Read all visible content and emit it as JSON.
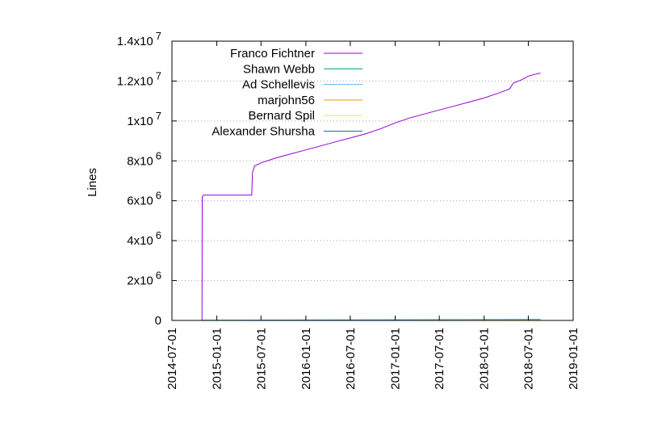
{
  "chart_data": {
    "type": "line",
    "title": "",
    "xlabel": "",
    "ylabel": "Lines",
    "ylim": [
      0,
      14000000
    ],
    "xlim": [
      "2014-07-01",
      "2019-01-01"
    ],
    "grid": true,
    "legend_position": "top-left",
    "y_ticks": [
      {
        "value": 0,
        "mantissa": "0",
        "exp": ""
      },
      {
        "value": 2000000,
        "mantissa": "2x10",
        "exp": "6"
      },
      {
        "value": 4000000,
        "mantissa": "4x10",
        "exp": "6"
      },
      {
        "value": 6000000,
        "mantissa": "6x10",
        "exp": "6"
      },
      {
        "value": 8000000,
        "mantissa": "8x10",
        "exp": "6"
      },
      {
        "value": 10000000,
        "mantissa": "1x10",
        "exp": "7"
      },
      {
        "value": 12000000,
        "mantissa": "1.2x10",
        "exp": "7"
      },
      {
        "value": 14000000,
        "mantissa": "1.4x10",
        "exp": "7"
      }
    ],
    "x_ticks": [
      "2014-07-01",
      "2015-01-01",
      "2015-07-01",
      "2016-01-01",
      "2016-07-01",
      "2017-01-01",
      "2017-07-01",
      "2018-01-01",
      "2018-07-01",
      "2019-01-01"
    ],
    "series": [
      {
        "name": "Franco Fichtner",
        "color": "#9400d3",
        "points": [
          [
            "2014-11-01",
            0
          ],
          [
            "2014-11-02",
            6200000
          ],
          [
            "2014-11-08",
            6280000
          ],
          [
            "2015-05-24",
            6280000
          ],
          [
            "2015-05-27",
            7400000
          ],
          [
            "2015-06-05",
            7750000
          ],
          [
            "2015-07-01",
            7900000
          ],
          [
            "2015-09-01",
            8150000
          ],
          [
            "2015-11-01",
            8350000
          ],
          [
            "2016-01-01",
            8550000
          ],
          [
            "2016-03-01",
            8750000
          ],
          [
            "2016-05-01",
            8950000
          ],
          [
            "2016-07-01",
            9150000
          ],
          [
            "2016-09-01",
            9350000
          ],
          [
            "2016-11-01",
            9600000
          ],
          [
            "2017-01-01",
            9900000
          ],
          [
            "2017-03-01",
            10150000
          ],
          [
            "2017-05-01",
            10350000
          ],
          [
            "2017-07-01",
            10550000
          ],
          [
            "2017-09-01",
            10750000
          ],
          [
            "2017-11-01",
            10950000
          ],
          [
            "2018-01-01",
            11150000
          ],
          [
            "2018-03-01",
            11400000
          ],
          [
            "2018-04-15",
            11600000
          ],
          [
            "2018-05-01",
            11900000
          ],
          [
            "2018-06-01",
            12050000
          ],
          [
            "2018-07-01",
            12250000
          ],
          [
            "2018-08-01",
            12350000
          ],
          [
            "2018-08-20",
            12400000
          ]
        ]
      },
      {
        "name": "Shawn Webb",
        "color": "#009e73",
        "points": [
          [
            "2014-11-02",
            6000
          ],
          [
            "2018-08-20",
            9000
          ]
        ]
      },
      {
        "name": "Ad Schellevis",
        "color": "#56b4e9",
        "points": [
          [
            "2014-11-02",
            10000
          ],
          [
            "2018-08-20",
            60000
          ]
        ]
      },
      {
        "name": "marjohn56",
        "color": "#e69f00",
        "points": [
          [
            "2014-11-02",
            1000
          ],
          [
            "2018-08-20",
            4000
          ]
        ]
      },
      {
        "name": "Bernard Spil",
        "color": "#f0e442",
        "points": [
          [
            "2014-11-02",
            1000
          ],
          [
            "2018-08-20",
            3000
          ]
        ]
      },
      {
        "name": "Alexander Shursha",
        "color": "#0072b2",
        "points": [
          [
            "2014-11-02",
            1000
          ],
          [
            "2018-08-20",
            2000
          ]
        ]
      }
    ]
  }
}
